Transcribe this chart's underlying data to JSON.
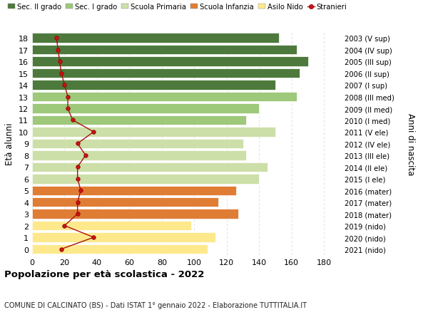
{
  "ages": [
    0,
    1,
    2,
    3,
    4,
    5,
    6,
    7,
    8,
    9,
    10,
    11,
    12,
    13,
    14,
    15,
    16,
    17,
    18
  ],
  "bar_values": [
    108,
    113,
    98,
    127,
    115,
    126,
    140,
    145,
    132,
    130,
    150,
    132,
    140,
    163,
    150,
    165,
    170,
    163,
    152
  ],
  "bar_colors": [
    "#fde98c",
    "#fde98c",
    "#fde98c",
    "#e07d35",
    "#e07d35",
    "#e07d35",
    "#ccdfa8",
    "#ccdfa8",
    "#ccdfa8",
    "#ccdfa8",
    "#ccdfa8",
    "#9ec87a",
    "#9ec87a",
    "#9ec87a",
    "#4d7a3c",
    "#4d7a3c",
    "#4d7a3c",
    "#4d7a3c",
    "#4d7a3c"
  ],
  "stranieri_values": [
    18,
    38,
    20,
    28,
    28,
    30,
    28,
    28,
    33,
    28,
    38,
    25,
    22,
    22,
    20,
    18,
    17,
    16,
    15
  ],
  "right_labels": [
    "2021 (nido)",
    "2020 (nido)",
    "2019 (nido)",
    "2018 (mater)",
    "2017 (mater)",
    "2016 (mater)",
    "2015 (I ele)",
    "2014 (II ele)",
    "2013 (III ele)",
    "2012 (IV ele)",
    "2011 (V ele)",
    "2010 (I med)",
    "2009 (II med)",
    "2008 (III med)",
    "2007 (I sup)",
    "2006 (II sup)",
    "2005 (III sup)",
    "2004 (IV sup)",
    "2003 (V sup)"
  ],
  "legend_labels": [
    "Sec. II grado",
    "Sec. I grado",
    "Scuola Primaria",
    "Scuola Infanzia",
    "Asilo Nido",
    "Stranieri"
  ],
  "legend_colors": [
    "#4d7a3c",
    "#9ec87a",
    "#ccdfa8",
    "#e07d35",
    "#fde98c",
    "#cc1111"
  ],
  "ylabel": "Età alunni",
  "ylabel_right": "Anni di nascita",
  "title": "Popolazione per età scolastica - 2022",
  "subtitle": "COMUNE DI CALCINATO (BS) - Dati ISTAT 1° gennaio 2022 - Elaborazione TUTTITALIA.IT",
  "xlim": [
    0,
    190
  ],
  "xticks": [
    0,
    20,
    40,
    60,
    80,
    100,
    120,
    140,
    160,
    180
  ],
  "grid_color": "#dddddd"
}
